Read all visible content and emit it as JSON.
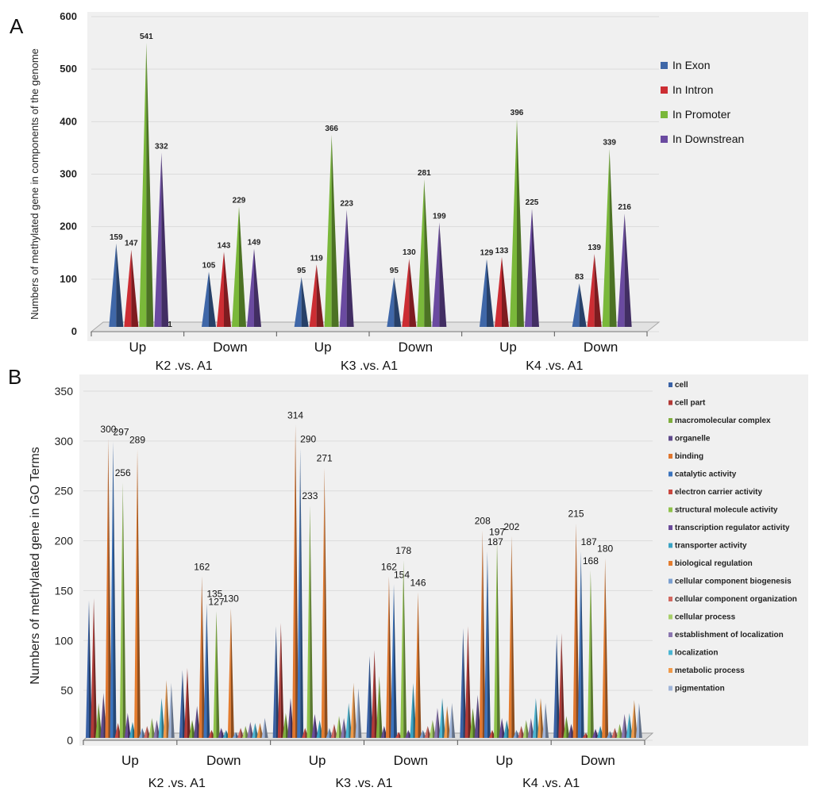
{
  "panels": [
    {
      "letter": "A",
      "ylabel": "Numbers of methylated gene in components of the genome",
      "colors": [
        "#3f67a8",
        "#cc2d33",
        "#7ab83a",
        "#6a4aa0"
      ],
      "chart_data": {
        "type": "bar",
        "style": "3d-cone",
        "ylim": [
          0,
          600
        ],
        "yticks": [
          0,
          100,
          200,
          300,
          400,
          500,
          600
        ],
        "groups": [
          "K2 .vs. A1",
          "K3 .vs. A1",
          "K4 .vs. A1"
        ],
        "categories": [
          "Up",
          "Down",
          "Up",
          "Down",
          "Up",
          "Down"
        ],
        "series": [
          {
            "name": "In Exon",
            "values": [
              159,
              105,
              95,
              95,
              129,
              83
            ]
          },
          {
            "name": "In Intron",
            "values": [
              147,
              143,
              119,
              130,
              133,
              139
            ]
          },
          {
            "name": "In Promoter",
            "values": [
              541,
              229,
              366,
              281,
              396,
              339
            ]
          },
          {
            "name": "In Downstrean",
            "values": [
              332,
              149,
              223,
              199,
              225,
              216
            ]
          }
        ],
        "extra_label": "1",
        "legend": "right"
      }
    },
    {
      "letter": "B",
      "ylabel": "Numbers of methylated gene in GO Terms",
      "colors": [
        "#3a62a6",
        "#b33a36",
        "#7fae3c",
        "#5f4a8c",
        "#e0762e",
        "#3b73bd",
        "#c9473f",
        "#8fc24a",
        "#6a4b9a",
        "#3aa3c4",
        "#e47c2e",
        "#7a9fd0",
        "#d2685f",
        "#a8cf6a",
        "#8b76b0",
        "#4bb6d3",
        "#f09a4a",
        "#9fb4d8"
      ],
      "chart_data": {
        "type": "bar",
        "style": "3d-cone",
        "ylim": [
          0,
          350
        ],
        "yticks": [
          0,
          50,
          100,
          150,
          200,
          250,
          300,
          350
        ],
        "groups": [
          "K2 .vs. A1",
          "K3 .vs. A1",
          "K4 .vs. A1"
        ],
        "categories": [
          "Up",
          "Down",
          "Up",
          "Down",
          "Up",
          "Down"
        ],
        "series": [
          {
            "name": "cell",
            "values": [
              138,
              68,
              112,
              82,
              110,
              104
            ]
          },
          {
            "name": "cell part",
            "values": [
              140,
              70,
              115,
              88,
              112,
              105
            ]
          },
          {
            "name": "macromolecular complex",
            "values": [
              35,
              18,
              25,
              62,
              30,
              22
            ]
          },
          {
            "name": "organelle",
            "values": [
              45,
              32,
              40,
              12,
              43,
              14
            ]
          },
          {
            "name": "binding",
            "values": [
              300,
              162,
              314,
              162,
              208,
              215
            ]
          },
          {
            "name": "catalytic activity",
            "values": [
              297,
              135,
              290,
              154,
              187,
              187
            ]
          },
          {
            "name": "electron carrier activity",
            "values": [
              15,
              8,
              10,
              6,
              8,
              5
            ]
          },
          {
            "name": "structural molecule activity",
            "values": [
              256,
              127,
              233,
              178,
              197,
              168
            ]
          },
          {
            "name": "transcription regulator activity",
            "values": [
              25,
              10,
              24,
              8,
              20,
              9
            ]
          },
          {
            "name": "transporter activity",
            "values": [
              16,
              8,
              18,
              55,
              18,
              12
            ]
          },
          {
            "name": "biological regulation",
            "values": [
              289,
              130,
              271,
              146,
              202,
              180
            ]
          },
          {
            "name": "cellular component biogenesis",
            "values": [
              10,
              6,
              10,
              8,
              8,
              7
            ]
          },
          {
            "name": "cellular component organization",
            "values": [
              12,
              10,
              14,
              12,
              12,
              10
            ]
          },
          {
            "name": "cellular process",
            "values": [
              20,
              12,
              22,
              18,
              18,
              14
            ]
          },
          {
            "name": "establishment of localization",
            "values": [
              18,
              16,
              20,
              30,
              20,
              24
            ]
          },
          {
            "name": "localization",
            "values": [
              40,
              15,
              35,
              40,
              40,
              25
            ]
          },
          {
            "name": "metabolic process",
            "values": [
              58,
              15,
              55,
              32,
              40,
              38
            ]
          },
          {
            "name": "pigmentation",
            "values": [
              55,
              20,
              50,
              35,
              35,
              35
            ]
          }
        ],
        "legend": "right"
      }
    }
  ]
}
